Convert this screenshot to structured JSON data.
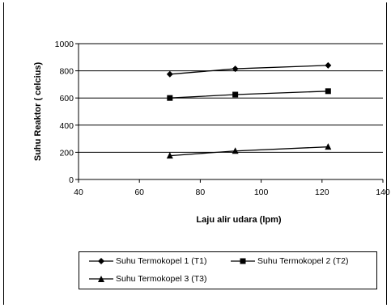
{
  "chart_data": {
    "type": "line",
    "title": "",
    "xlabel": "Laju alir udara (lpm)",
    "ylabel": "Suhu Reaktor ( celcius)",
    "xlim": [
      40,
      140
    ],
    "ylim": [
      0,
      1000
    ],
    "xticks": [
      "40",
      "60",
      "80",
      "100",
      "120",
      "140"
    ],
    "yticks": [
      "0",
      "200",
      "400",
      "600",
      "800",
      "1000"
    ],
    "grid": "horizontal",
    "legend": "bottom",
    "series": [
      {
        "name": "Suhu Termokopel 1 (T1)",
        "marker": "diamond",
        "x": [
          70,
          91.5,
          122
        ],
        "y": [
          775,
          815,
          840
        ]
      },
      {
        "name": "Suhu Termokopel 2 (T2)",
        "marker": "square",
        "x": [
          70,
          91.5,
          122
        ],
        "y": [
          600,
          625,
          650
        ]
      },
      {
        "name": "Suhu Termokopel 3 (T3)",
        "marker": "triangle",
        "x": [
          70,
          91.5,
          122
        ],
        "y": [
          175,
          210,
          240
        ]
      }
    ]
  }
}
